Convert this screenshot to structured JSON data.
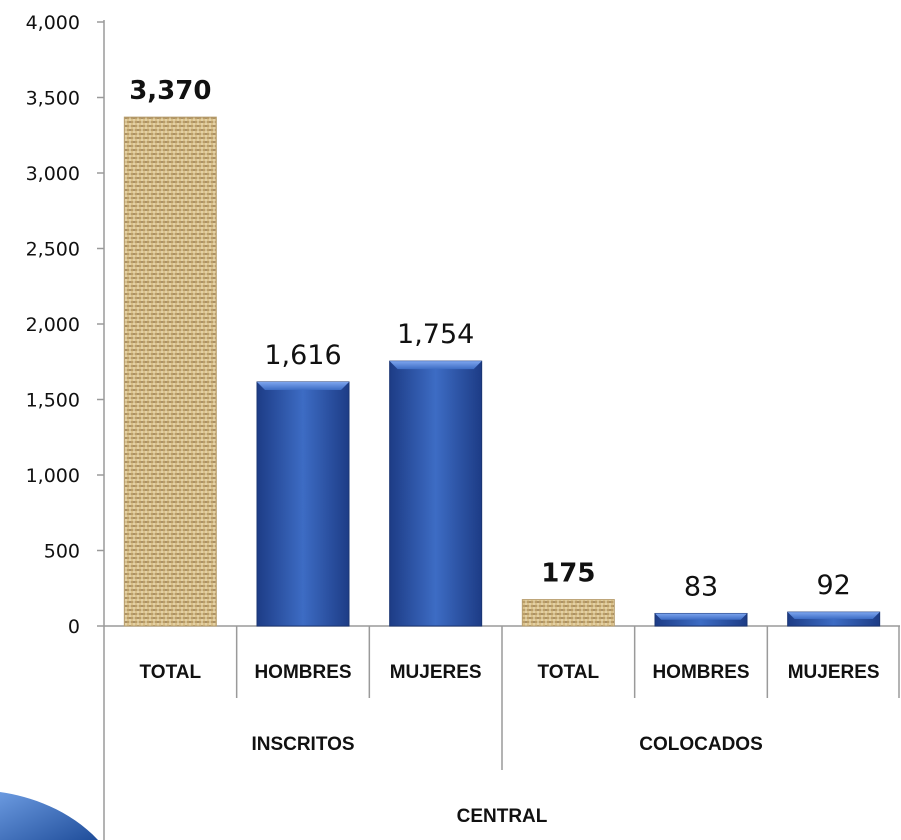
{
  "chart_data": {
    "type": "bar",
    "title": "",
    "xlabel": "",
    "ylabel": "",
    "ylim": [
      0,
      4000
    ],
    "yticks": [
      "0",
      "500",
      "1,000",
      "1,500",
      "2,000",
      "2,500",
      "3,000",
      "3,500",
      "4,000"
    ],
    "ytick_values": [
      0,
      500,
      1000,
      1500,
      2000,
      2500,
      3000,
      3500,
      4000
    ],
    "categories": [
      "TOTAL",
      "HOMBRES",
      "MUJERES",
      "TOTAL",
      "HOMBRES",
      "MUJERES"
    ],
    "groups": [
      "INSCRITOS",
      "COLOCADOS"
    ],
    "top_group": "CENTRAL",
    "values": [
      3370,
      1616,
      1754,
      175,
      83,
      92
    ],
    "value_labels": [
      "3,370",
      "1,616",
      "1,754",
      "175",
      "83",
      "92"
    ],
    "grid": false,
    "legend": "none",
    "colors": {
      "total_texture_light": "#e8d3a0",
      "total_texture_dark": "#8a6a3a",
      "bar_blue_light": "#4f7fd6",
      "bar_blue_dark": "#1e3f8e",
      "axis": "#9a9a9a",
      "corner_accent": "#2f66b8"
    }
  }
}
